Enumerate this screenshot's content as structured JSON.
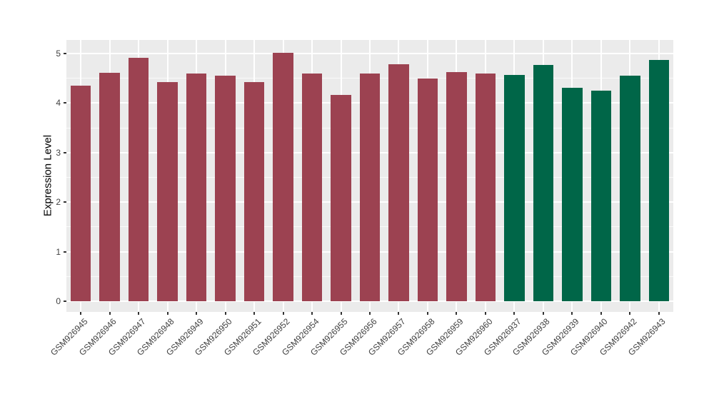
{
  "figure": {
    "background_color": "#FFFFFF",
    "panel_background_color": "#EBEBEB",
    "gridline_color": "#FFFFFF",
    "axis_text_color": "#404040",
    "axis_title_color": "#000000"
  },
  "chart_data": {
    "type": "bar",
    "title": "",
    "xlabel": "",
    "ylabel": "Expression Level",
    "ylim": [
      -0.25,
      5.27
    ],
    "yticks": [
      0,
      1,
      2,
      3,
      4,
      5
    ],
    "yticks_minor": [
      0.5,
      1.5,
      2.5,
      3.5,
      4.5
    ],
    "grid": "on",
    "legend": "none",
    "categories": [
      "GSM926945",
      "GSM926946",
      "GSM926947",
      "GSM926948",
      "GSM926949",
      "GSM926950",
      "GSM926951",
      "GSM926952",
      "GSM926954",
      "GSM926955",
      "GSM926956",
      "GSM926957",
      "GSM926958",
      "GSM926959",
      "GSM926960",
      "GSM926937",
      "GSM926938",
      "GSM926939",
      "GSM926940",
      "GSM926942",
      "GSM926943"
    ],
    "values": [
      4.35,
      4.61,
      4.91,
      4.43,
      4.6,
      4.55,
      4.43,
      5.01,
      4.6,
      4.16,
      4.6,
      4.79,
      4.49,
      4.63,
      4.6,
      4.57,
      4.77,
      4.31,
      4.25,
      4.55,
      4.87
    ],
    "bar_colors": [
      "#9C4251",
      "#9C4251",
      "#9C4251",
      "#9C4251",
      "#9C4251",
      "#9C4251",
      "#9C4251",
      "#9C4251",
      "#9C4251",
      "#9C4251",
      "#9C4251",
      "#9C4251",
      "#9C4251",
      "#9C4251",
      "#9C4251",
      "#006648",
      "#006648",
      "#006648",
      "#006648",
      "#006648",
      "#006648"
    ],
    "palette": {
      "group_1_color": "#9C4251",
      "group_2_color": "#006648"
    },
    "groups": [
      {
        "color": "#9C4251",
        "first": "GSM926945",
        "last": "GSM926960",
        "count": 15
      },
      {
        "color": "#006648",
        "first": "GSM926937",
        "last": "GSM926943",
        "count": 6
      }
    ]
  }
}
